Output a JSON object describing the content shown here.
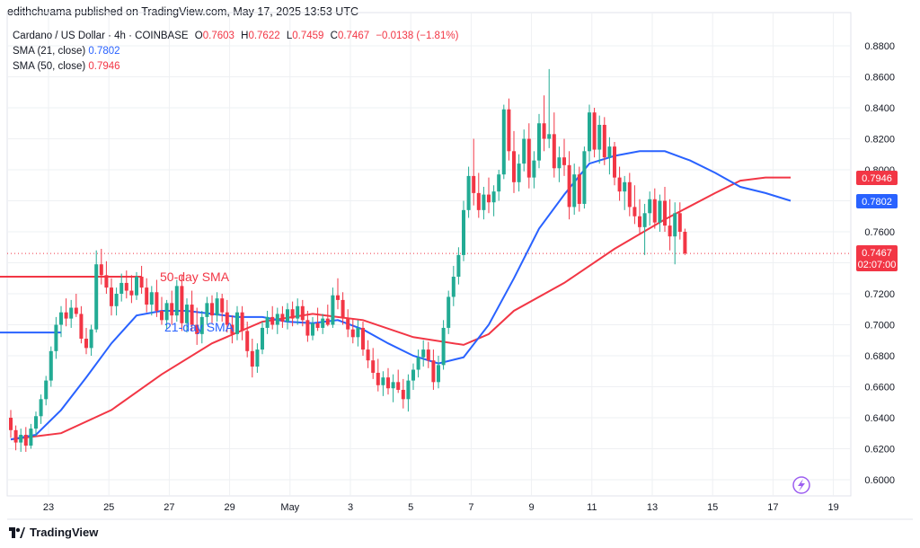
{
  "header": {
    "credit": "edithchuama published on TradingView.com, May 17, 2025 13:53 UTC"
  },
  "legend": {
    "symbol": "Cardano / US Dollar · 4h · COINBASE",
    "o_label": "O",
    "o_value": "0.7603",
    "h_label": "H",
    "h_value": "0.7622",
    "l_label": "L",
    "l_value": "0.7459",
    "c_label": "C",
    "c_value": "0.7467",
    "change": "−0.0138 (−1.81%)",
    "sma21_label": "SMA (21, close)",
    "sma21_value": "0.7802",
    "sma50_label": "SMA (50, close)",
    "sma50_value": "0.7946"
  },
  "annotations": {
    "sma50_text": "50-day SMA",
    "sma21_text": "21-day SMA"
  },
  "price_tags": {
    "sma50": "0.7946",
    "sma21": "0.7802",
    "last": "0.7467",
    "countdown": "02:07:00"
  },
  "footer": {
    "brand": "TradingView"
  },
  "colors": {
    "up": "#22ab94",
    "down": "#f23645",
    "sma21": "#2962ff",
    "sma50": "#f23645",
    "grid": "#eef0f3"
  },
  "chart_data": {
    "type": "candlestick",
    "title": "Cardano / US Dollar · 4h · COINBASE",
    "y_ticks": [
      "0.6000",
      "0.6200",
      "0.6400",
      "0.6600",
      "0.6800",
      "0.7000",
      "0.7200",
      "0.7400",
      "0.7600",
      "0.7800",
      "0.8000",
      "0.8200",
      "0.8400",
      "0.8600",
      "0.8800"
    ],
    "x_ticks": [
      "23",
      "25",
      "27",
      "29",
      "May",
      "3",
      "5",
      "7",
      "9",
      "11",
      "13",
      "15",
      "17",
      "19"
    ],
    "x_tick_index": [
      7.5,
      19.5,
      31.5,
      43.5,
      55.5,
      67.5,
      79.5,
      91.5,
      103.5,
      115.5,
      127.5,
      139.5,
      151.5,
      163.5
    ],
    "ylim": [
      0.593,
      0.893
    ],
    "grid": true,
    "candles": [
      [
        0.64,
        0.645,
        0.627,
        0.632
      ],
      [
        0.632,
        0.635,
        0.619,
        0.624
      ],
      [
        0.624,
        0.633,
        0.618,
        0.629
      ],
      [
        0.629,
        0.634,
        0.618,
        0.622
      ],
      [
        0.622,
        0.636,
        0.62,
        0.633
      ],
      [
        0.633,
        0.644,
        0.628,
        0.641
      ],
      [
        0.641,
        0.655,
        0.636,
        0.652
      ],
      [
        0.652,
        0.667,
        0.648,
        0.664
      ],
      [
        0.664,
        0.686,
        0.66,
        0.683
      ],
      [
        0.683,
        0.705,
        0.678,
        0.7
      ],
      [
        0.7,
        0.712,
        0.692,
        0.708
      ],
      [
        0.708,
        0.717,
        0.699,
        0.704
      ],
      [
        0.704,
        0.716,
        0.698,
        0.711
      ],
      [
        0.711,
        0.72,
        0.705,
        0.707
      ],
      [
        0.707,
        0.712,
        0.688,
        0.691
      ],
      [
        0.691,
        0.698,
        0.681,
        0.685
      ],
      [
        0.685,
        0.7,
        0.68,
        0.697
      ],
      [
        0.697,
        0.748,
        0.695,
        0.739
      ],
      [
        0.739,
        0.749,
        0.726,
        0.732
      ],
      [
        0.732,
        0.741,
        0.72,
        0.724
      ],
      [
        0.724,
        0.73,
        0.706,
        0.712
      ],
      [
        0.712,
        0.724,
        0.706,
        0.72
      ],
      [
        0.72,
        0.733,
        0.715,
        0.727
      ],
      [
        0.727,
        0.735,
        0.717,
        0.722
      ],
      [
        0.722,
        0.732,
        0.714,
        0.719
      ],
      [
        0.719,
        0.734,
        0.716,
        0.731
      ],
      [
        0.731,
        0.738,
        0.72,
        0.724
      ],
      [
        0.724,
        0.73,
        0.708,
        0.713
      ],
      [
        0.713,
        0.725,
        0.706,
        0.721
      ],
      [
        0.721,
        0.729,
        0.705,
        0.709
      ],
      [
        0.709,
        0.718,
        0.7,
        0.703
      ],
      [
        0.703,
        0.716,
        0.697,
        0.714
      ],
      [
        0.714,
        0.722,
        0.7,
        0.706
      ],
      [
        0.706,
        0.729,
        0.702,
        0.725
      ],
      [
        0.725,
        0.732,
        0.696,
        0.701
      ],
      [
        0.701,
        0.717,
        0.695,
        0.713
      ],
      [
        0.713,
        0.722,
        0.696,
        0.7
      ],
      [
        0.7,
        0.711,
        0.687,
        0.694
      ],
      [
        0.694,
        0.709,
        0.688,
        0.705
      ],
      [
        0.705,
        0.718,
        0.7,
        0.714
      ],
      [
        0.714,
        0.719,
        0.701,
        0.706
      ],
      [
        0.706,
        0.721,
        0.702,
        0.717
      ],
      [
        0.717,
        0.72,
        0.702,
        0.708
      ],
      [
        0.708,
        0.716,
        0.695,
        0.7
      ],
      [
        0.7,
        0.706,
        0.688,
        0.694
      ],
      [
        0.694,
        0.712,
        0.69,
        0.708
      ],
      [
        0.708,
        0.712,
        0.69,
        0.696
      ],
      [
        0.696,
        0.702,
        0.679,
        0.683
      ],
      [
        0.683,
        0.691,
        0.666,
        0.673
      ],
      [
        0.673,
        0.688,
        0.669,
        0.684
      ],
      [
        0.684,
        0.702,
        0.681,
        0.698
      ],
      [
        0.698,
        0.709,
        0.694,
        0.705
      ],
      [
        0.705,
        0.712,
        0.697,
        0.7
      ],
      [
        0.7,
        0.711,
        0.694,
        0.707
      ],
      [
        0.707,
        0.712,
        0.698,
        0.702
      ],
      [
        0.702,
        0.714,
        0.697,
        0.71
      ],
      [
        0.71,
        0.715,
        0.699,
        0.704
      ],
      [
        0.704,
        0.717,
        0.7,
        0.712
      ],
      [
        0.712,
        0.716,
        0.699,
        0.703
      ],
      [
        0.703,
        0.709,
        0.689,
        0.693
      ],
      [
        0.693,
        0.705,
        0.69,
        0.701
      ],
      [
        0.701,
        0.711,
        0.696,
        0.698
      ],
      [
        0.698,
        0.707,
        0.694,
        0.704
      ],
      [
        0.704,
        0.713,
        0.699,
        0.7
      ],
      [
        0.7,
        0.724,
        0.698,
        0.719
      ],
      [
        0.719,
        0.73,
        0.71,
        0.716
      ],
      [
        0.716,
        0.721,
        0.7,
        0.704
      ],
      [
        0.704,
        0.71,
        0.692,
        0.697
      ],
      [
        0.697,
        0.704,
        0.688,
        0.692
      ],
      [
        0.692,
        0.703,
        0.686,
        0.698
      ],
      [
        0.698,
        0.702,
        0.68,
        0.684
      ],
      [
        0.684,
        0.69,
        0.672,
        0.677
      ],
      [
        0.677,
        0.685,
        0.665,
        0.669
      ],
      [
        0.669,
        0.678,
        0.657,
        0.661
      ],
      [
        0.661,
        0.67,
        0.654,
        0.666
      ],
      [
        0.666,
        0.672,
        0.655,
        0.659
      ],
      [
        0.659,
        0.668,
        0.65,
        0.663
      ],
      [
        0.663,
        0.671,
        0.656,
        0.658
      ],
      [
        0.658,
        0.665,
        0.646,
        0.652
      ],
      [
        0.652,
        0.668,
        0.644,
        0.664
      ],
      [
        0.664,
        0.675,
        0.658,
        0.671
      ],
      [
        0.671,
        0.684,
        0.666,
        0.679
      ],
      [
        0.679,
        0.69,
        0.673,
        0.684
      ],
      [
        0.684,
        0.689,
        0.672,
        0.677
      ],
      [
        0.677,
        0.684,
        0.658,
        0.663
      ],
      [
        0.663,
        0.68,
        0.659,
        0.674
      ],
      [
        0.674,
        0.703,
        0.671,
        0.698
      ],
      [
        0.698,
        0.722,
        0.694,
        0.718
      ],
      [
        0.718,
        0.738,
        0.712,
        0.731
      ],
      [
        0.731,
        0.75,
        0.726,
        0.745
      ],
      [
        0.745,
        0.78,
        0.741,
        0.774
      ],
      [
        0.774,
        0.802,
        0.769,
        0.796
      ],
      [
        0.796,
        0.82,
        0.777,
        0.785
      ],
      [
        0.785,
        0.798,
        0.769,
        0.774
      ],
      [
        0.774,
        0.789,
        0.768,
        0.784
      ],
      [
        0.784,
        0.795,
        0.772,
        0.779
      ],
      [
        0.779,
        0.79,
        0.77,
        0.786
      ],
      [
        0.786,
        0.8,
        0.78,
        0.797
      ],
      [
        0.797,
        0.842,
        0.794,
        0.839
      ],
      [
        0.839,
        0.846,
        0.806,
        0.812
      ],
      [
        0.812,
        0.825,
        0.785,
        0.792
      ],
      [
        0.792,
        0.81,
        0.786,
        0.804
      ],
      [
        0.804,
        0.826,
        0.799,
        0.82
      ],
      [
        0.82,
        0.83,
        0.788,
        0.795
      ],
      [
        0.795,
        0.812,
        0.788,
        0.806
      ],
      [
        0.806,
        0.836,
        0.801,
        0.83
      ],
      [
        0.83,
        0.848,
        0.812,
        0.82
      ],
      [
        0.82,
        0.865,
        0.814,
        0.823
      ],
      [
        0.823,
        0.837,
        0.795,
        0.801
      ],
      [
        0.801,
        0.815,
        0.792,
        0.808
      ],
      [
        0.808,
        0.82,
        0.796,
        0.803
      ],
      [
        0.803,
        0.812,
        0.768,
        0.776
      ],
      [
        0.776,
        0.804,
        0.771,
        0.797
      ],
      [
        0.797,
        0.802,
        0.773,
        0.778
      ],
      [
        0.778,
        0.815,
        0.775,
        0.812
      ],
      [
        0.812,
        0.842,
        0.805,
        0.837
      ],
      [
        0.837,
        0.84,
        0.808,
        0.813
      ],
      [
        0.813,
        0.835,
        0.804,
        0.829
      ],
      [
        0.829,
        0.834,
        0.803,
        0.808
      ],
      [
        0.808,
        0.821,
        0.797,
        0.815
      ],
      [
        0.815,
        0.818,
        0.79,
        0.795
      ],
      [
        0.795,
        0.802,
        0.78,
        0.786
      ],
      [
        0.786,
        0.796,
        0.774,
        0.792
      ],
      [
        0.792,
        0.798,
        0.77,
        0.776
      ],
      [
        0.776,
        0.79,
        0.765,
        0.77
      ],
      [
        0.77,
        0.781,
        0.758,
        0.763
      ],
      [
        0.763,
        0.778,
        0.745,
        0.772
      ],
      [
        0.772,
        0.786,
        0.764,
        0.781
      ],
      [
        0.781,
        0.788,
        0.762,
        0.766
      ],
      [
        0.766,
        0.784,
        0.76,
        0.78
      ],
      [
        0.78,
        0.789,
        0.76,
        0.764
      ],
      [
        0.764,
        0.781,
        0.748,
        0.757
      ],
      [
        0.757,
        0.779,
        0.739,
        0.772
      ],
      [
        0.772,
        0.779,
        0.755,
        0.76
      ],
      [
        0.76,
        0.762,
        0.745,
        0.746
      ]
    ],
    "x_ticks_note": "",
    "sma21": [
      [
        0,
        0.626
      ],
      [
        5,
        0.629
      ],
      [
        10,
        0.645
      ],
      [
        15,
        0.666
      ],
      [
        20,
        0.688
      ],
      [
        25,
        0.706
      ],
      [
        30,
        0.709
      ],
      [
        35,
        0.709
      ],
      [
        40,
        0.707
      ],
      [
        45,
        0.705
      ],
      [
        50,
        0.705
      ],
      [
        55,
        0.702
      ],
      [
        60,
        0.701
      ],
      [
        65,
        0.703
      ],
      [
        70,
        0.697
      ],
      [
        75,
        0.688
      ],
      [
        80,
        0.68
      ],
      [
        85,
        0.675
      ],
      [
        90,
        0.679
      ],
      [
        95,
        0.7
      ],
      [
        100,
        0.73
      ],
      [
        105,
        0.762
      ],
      [
        110,
        0.784
      ],
      [
        115,
        0.804
      ],
      [
        120,
        0.809
      ],
      [
        125,
        0.812
      ],
      [
        130,
        0.812
      ],
      [
        135,
        0.806
      ],
      [
        140,
        0.798
      ],
      [
        145,
        0.789
      ],
      [
        150,
        0.785
      ],
      [
        155,
        0.78
      ]
    ],
    "sma50": [
      [
        0,
        0.626
      ],
      [
        10,
        0.63
      ],
      [
        20,
        0.645
      ],
      [
        30,
        0.668
      ],
      [
        40,
        0.688
      ],
      [
        50,
        0.702
      ],
      [
        60,
        0.707
      ],
      [
        70,
        0.703
      ],
      [
        80,
        0.692
      ],
      [
        90,
        0.687
      ],
      [
        95,
        0.694
      ],
      [
        100,
        0.709
      ],
      [
        110,
        0.727
      ],
      [
        120,
        0.749
      ],
      [
        130,
        0.768
      ],
      [
        140,
        0.785
      ],
      [
        145,
        0.793
      ],
      [
        150,
        0.795
      ],
      [
        155,
        0.795
      ]
    ],
    "line_21": {
      "start_index": -8,
      "end_index": 10,
      "value": 0.695
    },
    "line_50": {
      "start_index": -8,
      "end_index": 26,
      "value": 0.731
    }
  }
}
